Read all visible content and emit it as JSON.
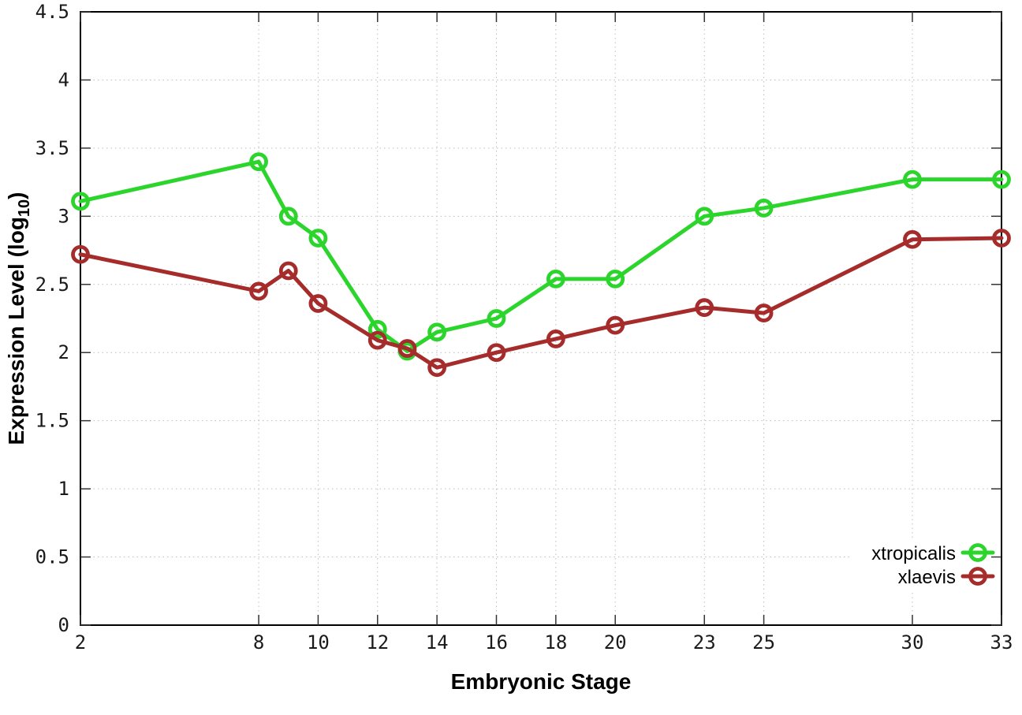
{
  "chart_data": {
    "type": "line",
    "title": "",
    "xlabel": "Embryonic Stage",
    "ylabel": "Expression Level (log10)",
    "ylabel_parts": {
      "main": "Expression Level (log",
      "sub": "10",
      "end": ")"
    },
    "xlim": [
      2,
      33
    ],
    "ylim": [
      0,
      4.5
    ],
    "grid": true,
    "legend_position": "bottom-right",
    "xticks": [
      {
        "v": 2,
        "label": "2"
      },
      {
        "v": 8,
        "label": "8"
      },
      {
        "v": 10,
        "label": "10"
      },
      {
        "v": 12,
        "label": "12"
      },
      {
        "v": 14,
        "label": "14"
      },
      {
        "v": 16,
        "label": "16"
      },
      {
        "v": 18,
        "label": "18"
      },
      {
        "v": 20,
        "label": "20"
      },
      {
        "v": 23,
        "label": "23"
      },
      {
        "v": 25,
        "label": "25"
      },
      {
        "v": 30,
        "label": "30"
      },
      {
        "v": 33,
        "label": "33"
      }
    ],
    "yticks": [
      {
        "v": 0,
        "label": "0"
      },
      {
        "v": 0.5,
        "label": "0.5"
      },
      {
        "v": 1,
        "label": "1"
      },
      {
        "v": 1.5,
        "label": "1.5"
      },
      {
        "v": 2,
        "label": "2"
      },
      {
        "v": 2.5,
        "label": "2.5"
      },
      {
        "v": 3,
        "label": "3"
      },
      {
        "v": 3.5,
        "label": "3.5"
      },
      {
        "v": 4,
        "label": "4"
      },
      {
        "v": 4.5,
        "label": "4.5"
      }
    ],
    "x": [
      2,
      8,
      9,
      10,
      12,
      13,
      14,
      16,
      18,
      20,
      23,
      25,
      30,
      33
    ],
    "series": [
      {
        "name": "xtropicalis",
        "color": "#2bd52b",
        "values": [
          3.11,
          3.4,
          3.0,
          2.84,
          2.17,
          2.01,
          2.15,
          2.25,
          2.54,
          2.54,
          3.0,
          3.06,
          3.27,
          3.27
        ]
      },
      {
        "name": "xlaevis",
        "color": "#a62c2c",
        "values": [
          2.72,
          2.45,
          2.6,
          2.36,
          2.09,
          2.03,
          1.89,
          2.0,
          2.1,
          2.2,
          2.33,
          2.29,
          2.83,
          2.84
        ]
      }
    ]
  }
}
